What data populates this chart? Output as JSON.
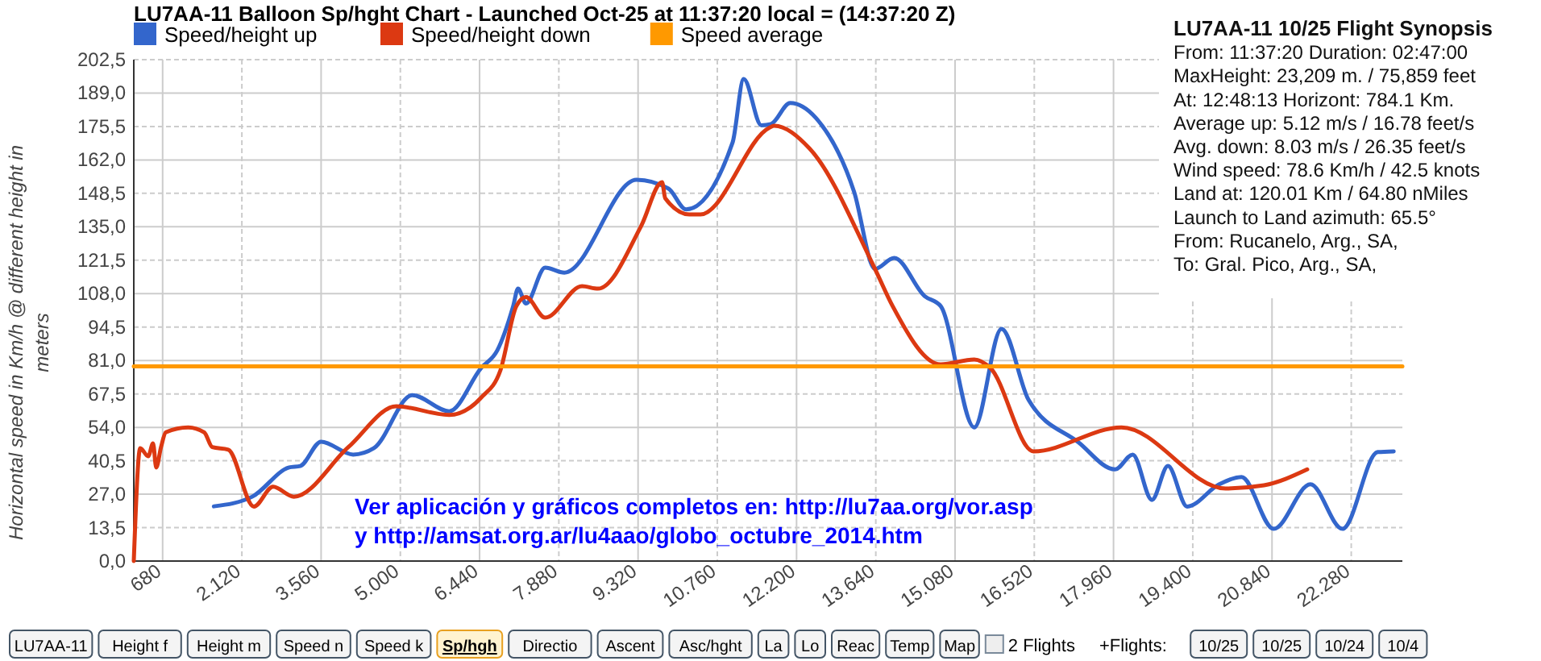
{
  "chart_data": {
    "type": "line",
    "title": "LU7AA-11 Balloon Sp/hght Chart - Launched Oct-25 at 11:37:20 local = (14:37:20 Z)",
    "ylabel": "Horizontal speed in Km/h @ different height in meters",
    "xlim": [
      156,
      23209
    ],
    "xticks": [
      {
        "value": 680,
        "label": "680"
      },
      {
        "value": 2120,
        "label": "2.120"
      },
      {
        "value": 3560,
        "label": "3.560"
      },
      {
        "value": 5000,
        "label": "5.000"
      },
      {
        "value": 6440,
        "label": "6.440"
      },
      {
        "value": 7880,
        "label": "7.880"
      },
      {
        "value": 9320,
        "label": "9.320"
      },
      {
        "value": 10760,
        "label": "10.760"
      },
      {
        "value": 12200,
        "label": "12.200"
      },
      {
        "value": 13640,
        "label": "13.640"
      },
      {
        "value": 15080,
        "label": "15.080"
      },
      {
        "value": 16520,
        "label": "16.520"
      },
      {
        "value": 17960,
        "label": "17.960"
      },
      {
        "value": 19400,
        "label": "19.400"
      },
      {
        "value": 20840,
        "label": "20.840"
      },
      {
        "value": 22280,
        "label": "22.280"
      }
    ],
    "ylim": [
      0,
      202.5
    ],
    "yticks": [
      {
        "value": 0,
        "label": "0,0"
      },
      {
        "value": 13.5,
        "label": "13,5"
      },
      {
        "value": 27,
        "label": "27,0"
      },
      {
        "value": 40.5,
        "label": "40,5"
      },
      {
        "value": 54,
        "label": "54,0"
      },
      {
        "value": 67.5,
        "label": "67,5"
      },
      {
        "value": 81,
        "label": "81,0"
      },
      {
        "value": 94.5,
        "label": "94,5"
      },
      {
        "value": 108,
        "label": "108,0"
      },
      {
        "value": 121.5,
        "label": "121,5"
      },
      {
        "value": 135,
        "label": "135,0"
      },
      {
        "value": 148.5,
        "label": "148,5"
      },
      {
        "value": 162,
        "label": "162,0"
      },
      {
        "value": 175.5,
        "label": "175,5"
      },
      {
        "value": 189,
        "label": "189,0"
      },
      {
        "value": 202.5,
        "label": "202,5"
      }
    ],
    "grid": true,
    "legend": "top left",
    "marker": "none",
    "line_style": "solid",
    "series": [
      {
        "name": "Speed/height up",
        "color": "#3366cc",
        "x": [
          1611,
          2309,
          2978,
          3182,
          3560,
          4142,
          4520,
          5218,
          5887,
          6469,
          6760,
          7051,
          7138,
          7283,
          7632,
          7981,
          9291,
          9873,
          10193,
          11037,
          11240,
          11560,
          11735,
          12084,
          12549,
          13247,
          13625,
          13974,
          14527,
          14818,
          15429,
          15924,
          16418,
          17319,
          17989,
          18309,
          18658,
          18949,
          19298,
          19880,
          20287,
          20869,
          21538,
          22120,
          22760,
          23051
        ],
        "values": [
          22.1,
          26,
          37.8,
          38.4,
          48.2,
          43,
          45.6,
          67,
          60.5,
          78,
          85,
          103,
          110,
          104,
          118.5,
          116.5,
          154,
          150.4,
          142,
          169,
          194.7,
          176,
          176.5,
          185,
          179,
          149,
          118,
          122.4,
          107,
          103,
          54,
          93.8,
          65,
          48,
          37,
          43,
          24.7,
          38.4,
          22,
          31,
          33.9,
          13,
          31,
          13,
          44,
          44.3
        ]
      },
      {
        "name": "Speed/height down",
        "color": "#dc3912",
        "x": [
          156,
          273,
          418,
          506,
          564,
          651,
          738,
          1145,
          1436,
          1582,
          1873,
          2338,
          2687,
          3065,
          4055,
          4927,
          5887,
          6469,
          6818,
          7109,
          7283,
          7632,
          8302,
          8593,
          9378,
          9756,
          9814,
          10251,
          10455,
          11705,
          11793,
          12433,
          13625,
          13945,
          14818,
          15429,
          15720,
          16505,
          18105,
          19996,
          20695,
          21480
        ],
        "values": [
          0,
          45.6,
          42.3,
          47.5,
          37.8,
          46,
          52,
          54,
          52,
          46,
          45,
          22,
          30,
          26,
          46,
          62.5,
          59,
          66,
          77,
          103,
          106.6,
          98.3,
          111,
          110,
          135.4,
          153,
          146.5,
          140,
          140,
          175,
          175.8,
          166.7,
          118,
          103,
          79.4,
          81.4,
          78,
          44.3,
          54,
          29.3,
          30.6,
          37
        ]
      },
      {
        "name": "Speed average",
        "color": "#ff9900",
        "x": [
          156,
          23209
        ],
        "values": [
          78.6,
          78.6
        ]
      }
    ],
    "annotations": [
      "LU7AA-11 10/25 Flight Synopsis",
      "From: 11:37:20 Duration: 02:47:00",
      "MaxHeight: 23,209 m. / 75,859 feet",
      "At: 12:48:13  Horizont: 784.1 Km.",
      "Average up: 5.12 m/s / 16.78 feet/s",
      "Avg. down: 8.03 m/s / 26.35 feet/s",
      "Wind speed: 78.6 Km/h / 42.5 knots",
      "Land at: 120.01 Km / 64.80 nMiles",
      "Launch to Land azimuth: 65.5°",
      "From: Rucanelo, Arg., SA,",
      "To: Gral. Pico, Arg., SA,",
      "Ver aplicación y gráficos completos en: http://lu7aa.org/vor.asp",
      "y http://amsat.org.ar/lu4aao/globo_octubre_2014.htm",
      "LU7AA-11",
      "Height f",
      "Height m",
      "Speed n",
      "Speed k",
      "Sp/hgh",
      "Directio",
      "Ascent",
      "Asc/hght",
      "La",
      "Lo",
      "Reac",
      "Temp",
      "Map",
      "2 Flights",
      "+Flights:",
      "10/25",
      "10/25",
      "10/24",
      "10/4"
    ]
  }
}
